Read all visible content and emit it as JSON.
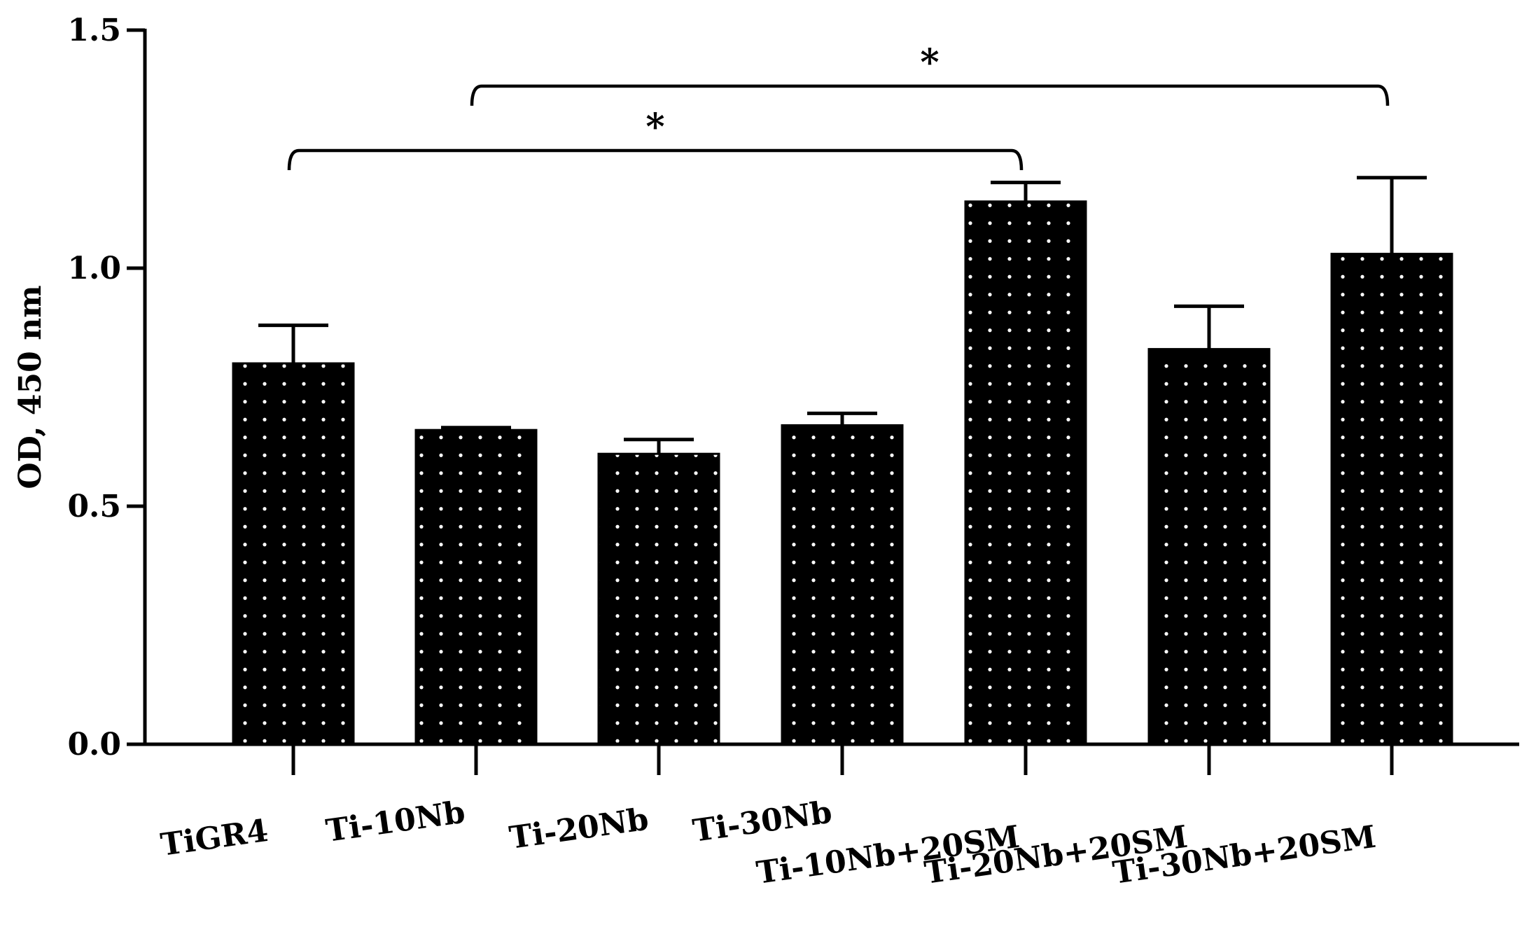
{
  "chart_data": {
    "type": "bar",
    "title": "",
    "xlabel": "",
    "ylabel": "OD, 450 nm",
    "ylim": [
      0,
      1.5
    ],
    "yticks": [
      "0.0",
      "0.5",
      "1.0",
      "1.5"
    ],
    "grid": false,
    "categories": [
      "TiGR4",
      "Ti-10Nb",
      "Ti-20Nb",
      "Ti-30Nb",
      "Ti-10Nb+20SM",
      "Ti-20Nb+20SM",
      "Ti-30Nb+20SM"
    ],
    "values": [
      0.8,
      0.66,
      0.61,
      0.67,
      1.14,
      0.83,
      1.03
    ],
    "errors": [
      0.08,
      0.005,
      0.03,
      0.025,
      0.04,
      0.09,
      0.16
    ],
    "bar_color": "#000000",
    "dot_color": "#ffffff",
    "significance": [
      {
        "from": 0,
        "to": 4,
        "label": "*"
      },
      {
        "from": 1,
        "to": 6,
        "label": "*"
      }
    ]
  }
}
